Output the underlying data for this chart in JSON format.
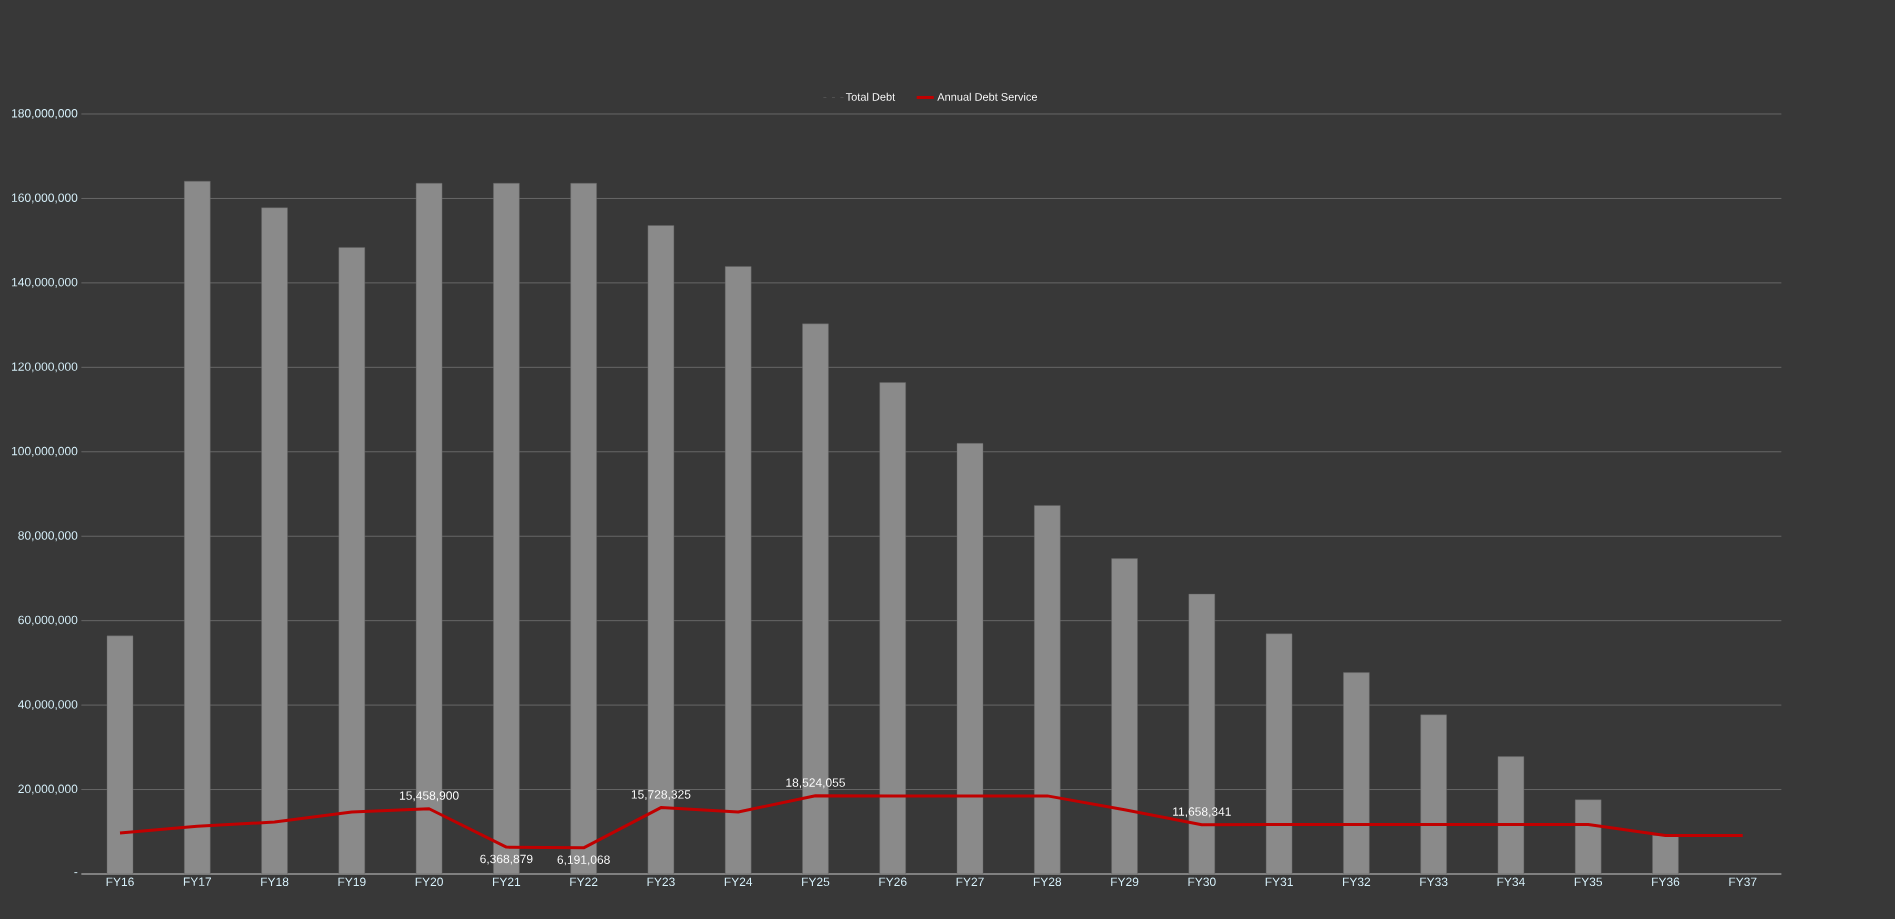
{
  "chart_data": {
    "type": "bar",
    "categories": [
      "FY16",
      "FY17",
      "FY18",
      "FY19",
      "FY20",
      "FY21",
      "FY22",
      "FY23",
      "FY24",
      "FY25",
      "FY26",
      "FY27",
      "FY28",
      "FY29",
      "FY30",
      "FY31",
      "FY32",
      "FY33",
      "FY34",
      "FY35",
      "FY36",
      "FY37"
    ],
    "series": [
      {
        "name": "Total Debt",
        "color": "#8a8a8a",
        "values": [
          56400000,
          164100000,
          157800000,
          148400000,
          163600000,
          163600000,
          163600000,
          153600000,
          143900000,
          130300000,
          116400000,
          102000000,
          87300000,
          74700000,
          66300000,
          56900000,
          47700000,
          37700000,
          27800000,
          17600000,
          9200000,
          null
        ]
      },
      {
        "name": "Annual Debt Service",
        "type": "line",
        "color": "#c00000",
        "values": [
          9700000,
          11300000,
          12300000,
          14700000,
          15458900,
          6368879,
          6191068,
          15728325,
          14700000,
          18524055,
          18500000,
          18500000,
          18500000,
          15200000,
          11658341,
          11700000,
          11700000,
          11700000,
          11700000,
          11700000,
          9100000,
          9100000
        ],
        "value_labels": [
          null,
          null,
          null,
          null,
          "15,458,900",
          "6,368,879",
          "6,191,068",
          "15,728,325",
          null,
          "18,524,055",
          null,
          null,
          null,
          null,
          "11,658,341",
          null,
          null,
          null,
          null,
          null,
          null,
          null
        ]
      }
    ],
    "ylim": [
      0,
      180000000
    ],
    "yticks": [
      {
        "value": 0,
        "label": "-"
      },
      {
        "value": 20000000,
        "label": "20,000,000"
      },
      {
        "value": 40000000,
        "label": "40,000,000"
      },
      {
        "value": 60000000,
        "label": "60,000,000"
      },
      {
        "value": 80000000,
        "label": "80,000,000"
      },
      {
        "value": 100000000,
        "label": "100,000,000"
      },
      {
        "value": 120000000,
        "label": "120,000,000"
      },
      {
        "value": 140000000,
        "label": "140,000,000"
      },
      {
        "value": 160000000,
        "label": "160,000,000"
      },
      {
        "value": 180000000,
        "label": "180,000,000"
      }
    ],
    "grid": "y",
    "legend": "top",
    "marker": "none"
  }
}
